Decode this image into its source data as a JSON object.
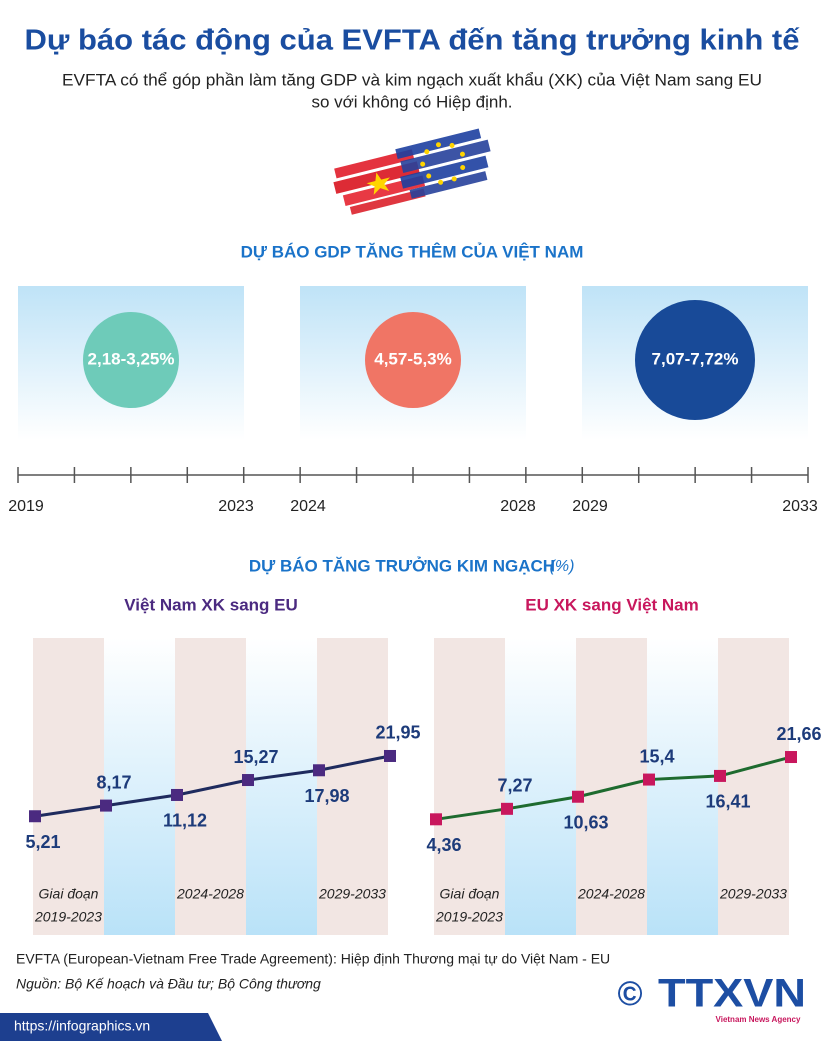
{
  "header": {
    "title": "Dự báo tác động của EVFTA đến tăng trưởng kinh tế",
    "subtitle_lines": [
      "EVFTA có thể góp phần làm tăng GDP và kim ngạch xuất khẩu (XK) của Việt Nam sang EU",
      "so với không có Hiệp định."
    ]
  },
  "gdp": {
    "heading": "DỰ BÁO GDP TĂNG THÊM CỦA VIỆT NAM",
    "periods": [
      {
        "label": "2,18-3,25%",
        "start": "2019",
        "end": "2023",
        "color": "#6ecbb9"
      },
      {
        "label": "4,57-5,3%",
        "start": "2024",
        "end": "2028",
        "color": "#f07565"
      },
      {
        "label": "7,07-7,72%",
        "start": "2029",
        "end": "2033",
        "color": "#184a98"
      }
    ]
  },
  "trade": {
    "heading": "DỰ BÁO TĂNG TRƯỞNG KIM NGẠCH",
    "unit": "(%)"
  },
  "chart_data": [
    {
      "type": "line",
      "title": "Việt Nam XK sang EU",
      "title_color": "#4b2a80",
      "categories": [
        null,
        null,
        null,
        null,
        null,
        null
      ],
      "values": [
        5.21,
        8.17,
        11.12,
        15.27,
        17.98,
        21.95
      ],
      "value_labels": [
        "5,21",
        "8,17",
        "11,12",
        "15,27",
        "17,98",
        "21,95"
      ],
      "color": "#1f2b5e",
      "marker_color": "#4b2a80",
      "period_labels": [
        [
          "Giai đoạn",
          "2019-2023"
        ],
        [
          "2024-2028"
        ],
        [
          "2029-2033"
        ]
      ]
    },
    {
      "type": "line",
      "title": "EU XK sang Việt Nam",
      "title_color": "#c8175d",
      "categories": [
        null,
        null,
        null,
        null,
        null,
        null
      ],
      "values": [
        4.36,
        7.27,
        10.63,
        15.4,
        16.41,
        21.66
      ],
      "value_labels": [
        "4,36",
        "7,27",
        "10,63",
        "15,4",
        "16,41",
        "21,66"
      ],
      "color": "#1e6b2f",
      "marker_color": "#c8175d",
      "period_labels": [
        [
          "Giai đoạn",
          "2019-2023"
        ],
        [
          "2024-2028"
        ],
        [
          "2029-2033"
        ]
      ]
    }
  ],
  "footer": {
    "note": "EVFTA (European-Vietnam Free Trade Agreement): Hiệp định Thương mại tự do Việt Nam - EU",
    "source": "Nguồn: Bộ Kế hoạch và Đầu tư; Bộ Công thương",
    "url": "https://infographics.vn",
    "copyright": "©",
    "logo": "TTXVN",
    "agency": "Vietnam News Agency"
  }
}
